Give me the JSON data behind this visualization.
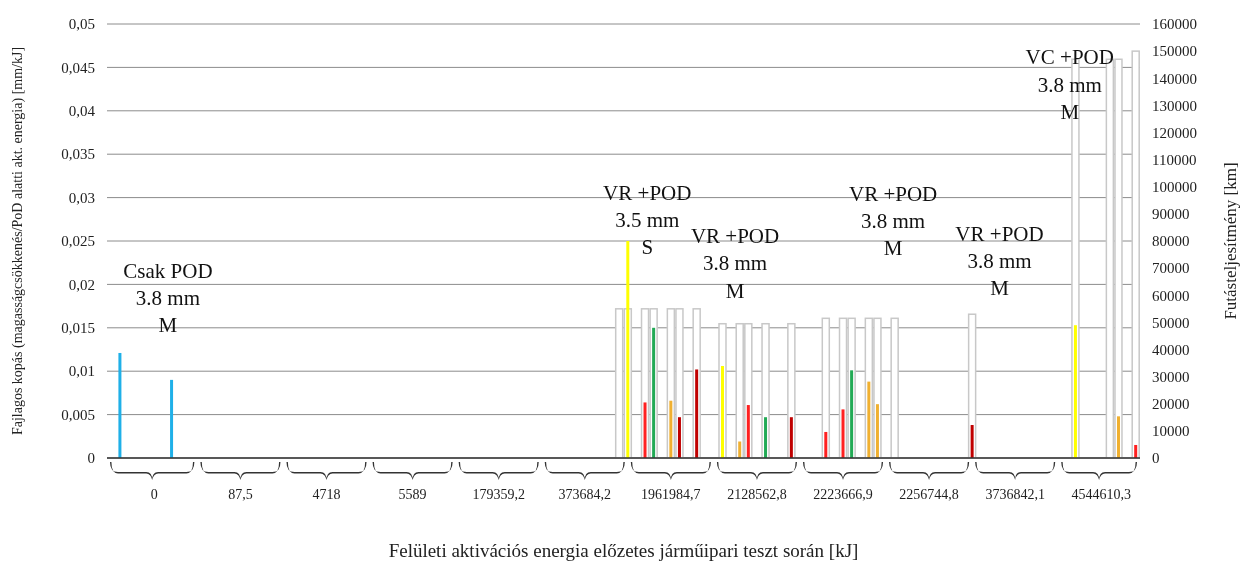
{
  "chart_data": {
    "type": "bar",
    "xlabel": "Felületi aktivációs energia előzetes járműipari teszt során [kJ]",
    "ylabel": "Fajlagos kopás (magasságcsökkenés/PoD alatti akt. energia) [mm/kJ]",
    "y2label": "Futásteljesítmény [km]",
    "categories": [
      null,
      null,
      null,
      null,
      null,
      "0",
      null,
      null,
      null,
      null,
      null,
      null,
      null,
      null,
      null,
      "87,5",
      null,
      null,
      null,
      null,
      null,
      null,
      null,
      null,
      null,
      "4718",
      null,
      null,
      null,
      null,
      null,
      null,
      null,
      null,
      null,
      "5589",
      null,
      null,
      null,
      null,
      null,
      null,
      null,
      null,
      null,
      "179359,2",
      null,
      null,
      null,
      null,
      null,
      null,
      null,
      null,
      null,
      "373684,2",
      null,
      null,
      null,
      null,
      null,
      null,
      null,
      null,
      null,
      "1961984,7",
      null,
      null,
      null,
      null,
      null,
      null,
      null,
      null,
      null,
      "2128562,8",
      null,
      null,
      null,
      null,
      null,
      null,
      null,
      null,
      null,
      "2223666,9",
      null,
      null,
      null,
      null,
      null,
      null,
      null,
      null,
      null,
      "2256744,8",
      null,
      null,
      null,
      null,
      null,
      null,
      null,
      null,
      null,
      "3736842,1",
      null,
      null,
      null,
      null,
      null,
      null,
      null,
      null,
      null,
      "4544610,3",
      null,
      null,
      null,
      null
    ],
    "ylim": [
      0,
      0.05
    ],
    "yticks": [
      0,
      {
        "value": 0.005,
        "label": "0,005"
      },
      {
        "value": 0.01,
        "label": "0,01"
      },
      {
        "value": 0.015,
        "label": "0,015"
      },
      {
        "value": 0.02,
        "label": "0,02"
      },
      {
        "value": 0.025,
        "label": "0,025"
      },
      {
        "value": 0.03,
        "label": "0,03"
      },
      {
        "value": 0.035,
        "label": "0,035"
      },
      {
        "value": 0.04,
        "label": "0,04"
      },
      {
        "value": 0.045,
        "label": "0,045"
      },
      {
        "value": 0.05,
        "label": "0,05"
      }
    ],
    "y2lim": [
      0,
      160000
    ],
    "y2ticks": [
      0,
      10000,
      20000,
      30000,
      40000,
      50000,
      60000,
      70000,
      80000,
      90000,
      100000,
      110000,
      120000,
      130000,
      140000,
      150000,
      160000
    ],
    "grid": "y",
    "series": [
      {
        "axis": "y2",
        "color": "#c8c8c8",
        "values": [
          null,
          null,
          null,
          null,
          null,
          null,
          null,
          null,
          null,
          null,
          null,
          null,
          null,
          null,
          null,
          null,
          null,
          null,
          null,
          null,
          null,
          null,
          null,
          null,
          null,
          null,
          null,
          null,
          null,
          null,
          null,
          null,
          null,
          null,
          null,
          null,
          null,
          null,
          null,
          null,
          null,
          null,
          null,
          null,
          null,
          null,
          null,
          null,
          null,
          null,
          null,
          null,
          null,
          null,
          null,
          null,
          null,
          null,
          null,
          55000,
          55000,
          null,
          55000,
          55000,
          null,
          55000,
          55000,
          null,
          55000,
          null,
          null,
          49500,
          null,
          49500,
          49500,
          null,
          49500,
          null,
          null,
          49500,
          null,
          null,
          null,
          51500,
          null,
          51500,
          51500,
          null,
          51500,
          51500,
          null,
          51500,
          null,
          null,
          null,
          null,
          null,
          null,
          null,
          null,
          53000,
          null,
          null,
          null,
          null,
          null,
          null,
          null,
          null,
          null,
          null,
          null,
          147000,
          null,
          null,
          null,
          147000,
          147000,
          null,
          150000
        ]
      },
      {
        "color": "#1fb0e8",
        "values": [
          null,
          0.0121,
          null,
          null,
          null,
          null,
          null,
          0.009,
          null,
          null,
          null,
          null,
          null,
          null,
          null,
          null,
          null,
          null,
          null,
          null,
          null,
          null,
          null,
          null,
          null,
          null,
          null,
          null,
          null,
          null,
          null,
          null,
          null,
          null,
          null,
          null,
          null,
          null,
          null,
          null,
          null,
          null,
          null,
          null,
          null,
          null,
          null,
          null,
          null,
          null,
          null,
          null,
          null,
          null,
          null,
          null,
          null,
          null,
          null,
          null,
          null,
          null,
          null,
          null,
          null,
          null,
          null,
          null,
          null,
          null,
          null,
          null,
          null,
          null,
          null,
          null,
          null,
          null,
          null,
          null,
          null,
          null,
          null,
          null,
          null,
          null,
          null,
          null,
          null,
          null,
          null,
          null,
          null,
          null,
          null,
          null,
          null,
          null,
          null,
          null,
          null,
          null,
          null,
          null,
          null,
          null,
          null,
          null,
          null,
          null,
          null,
          null,
          null,
          null,
          null,
          null,
          null,
          null,
          null,
          null
        ]
      },
      {
        "color": "#ffff00",
        "values": [
          null,
          null,
          null,
          null,
          null,
          null,
          null,
          null,
          null,
          null,
          null,
          null,
          null,
          null,
          null,
          null,
          null,
          null,
          null,
          null,
          null,
          null,
          null,
          null,
          null,
          null,
          null,
          null,
          null,
          null,
          null,
          null,
          null,
          null,
          null,
          null,
          null,
          null,
          null,
          null,
          null,
          null,
          null,
          null,
          null,
          null,
          null,
          null,
          null,
          null,
          null,
          null,
          null,
          null,
          null,
          null,
          null,
          null,
          null,
          null,
          0.025,
          null,
          null,
          null,
          null,
          null,
          null,
          null,
          null,
          null,
          null,
          0.0106,
          null,
          null,
          null,
          null,
          null,
          null,
          null,
          null,
          null,
          null,
          null,
          null,
          null,
          null,
          null,
          null,
          null,
          null,
          null,
          null,
          null,
          null,
          null,
          null,
          null,
          null,
          null,
          null,
          null,
          null,
          null,
          null,
          null,
          null,
          null,
          null,
          null,
          null,
          null,
          null,
          0.0153,
          null,
          null,
          null,
          null,
          null,
          null,
          null
        ]
      },
      {
        "color": "#ff2020",
        "values": [
          null,
          null,
          null,
          null,
          null,
          null,
          null,
          null,
          null,
          null,
          null,
          null,
          null,
          null,
          null,
          null,
          null,
          null,
          null,
          null,
          null,
          null,
          null,
          null,
          null,
          null,
          null,
          null,
          null,
          null,
          null,
          null,
          null,
          null,
          null,
          null,
          null,
          null,
          null,
          null,
          null,
          null,
          null,
          null,
          null,
          null,
          null,
          null,
          null,
          null,
          null,
          null,
          null,
          null,
          null,
          null,
          null,
          null,
          null,
          null,
          null,
          null,
          0.0064,
          null,
          null,
          null,
          null,
          null,
          null,
          null,
          null,
          null,
          null,
          null,
          0.0061,
          null,
          null,
          null,
          null,
          null,
          null,
          null,
          null,
          0.003,
          null,
          0.0056,
          null,
          null,
          null,
          null,
          null,
          null,
          null,
          null,
          null,
          null,
          null,
          null,
          null,
          null,
          null,
          null,
          null,
          null,
          null,
          null,
          null,
          null,
          null,
          null,
          null,
          null,
          null,
          null,
          null,
          null,
          null,
          null,
          null,
          0.0015
        ]
      },
      {
        "color": "#22aa55",
        "values": [
          null,
          null,
          null,
          null,
          null,
          null,
          null,
          null,
          null,
          null,
          null,
          null,
          null,
          null,
          null,
          null,
          null,
          null,
          null,
          null,
          null,
          null,
          null,
          null,
          null,
          null,
          null,
          null,
          null,
          null,
          null,
          null,
          null,
          null,
          null,
          null,
          null,
          null,
          null,
          null,
          null,
          null,
          null,
          null,
          null,
          null,
          null,
          null,
          null,
          null,
          null,
          null,
          null,
          null,
          null,
          null,
          null,
          null,
          null,
          null,
          null,
          null,
          null,
          0.015,
          null,
          null,
          null,
          null,
          null,
          null,
          null,
          null,
          null,
          null,
          null,
          null,
          0.0047,
          null,
          null,
          null,
          null,
          null,
          null,
          null,
          null,
          null,
          0.0101,
          null,
          null,
          null,
          null,
          null,
          null,
          null,
          null,
          null,
          null,
          null,
          null,
          null,
          null,
          null,
          null,
          null,
          null,
          null,
          null,
          null,
          null,
          null,
          null,
          null,
          null,
          null,
          null,
          null,
          null,
          null,
          null,
          null
        ]
      },
      {
        "color": "#f0b030",
        "values": [
          null,
          null,
          null,
          null,
          null,
          null,
          null,
          null,
          null,
          null,
          null,
          null,
          null,
          null,
          null,
          null,
          null,
          null,
          null,
          null,
          null,
          null,
          null,
          null,
          null,
          null,
          null,
          null,
          null,
          null,
          null,
          null,
          null,
          null,
          null,
          null,
          null,
          null,
          null,
          null,
          null,
          null,
          null,
          null,
          null,
          null,
          null,
          null,
          null,
          null,
          null,
          null,
          null,
          null,
          null,
          null,
          null,
          null,
          null,
          null,
          null,
          null,
          null,
          null,
          null,
          0.0066,
          null,
          null,
          null,
          null,
          null,
          null,
          null,
          0.0019,
          null,
          null,
          null,
          null,
          null,
          null,
          null,
          null,
          null,
          null,
          null,
          null,
          null,
          null,
          0.0088,
          0.0062,
          null,
          null,
          null,
          null,
          null,
          null,
          null,
          null,
          null,
          null,
          null,
          null,
          null,
          null,
          null,
          null,
          null,
          null,
          null,
          null,
          null,
          null,
          null,
          null,
          null,
          null,
          null,
          0.0048,
          null,
          null
        ]
      },
      {
        "color": "#c00000",
        "values": [
          null,
          null,
          null,
          null,
          null,
          null,
          null,
          null,
          null,
          null,
          null,
          null,
          null,
          null,
          null,
          null,
          null,
          null,
          null,
          null,
          null,
          null,
          null,
          null,
          null,
          null,
          null,
          null,
          null,
          null,
          null,
          null,
          null,
          null,
          null,
          null,
          null,
          null,
          null,
          null,
          null,
          null,
          null,
          null,
          null,
          null,
          null,
          null,
          null,
          null,
          null,
          null,
          null,
          null,
          null,
          null,
          null,
          null,
          null,
          null,
          null,
          null,
          null,
          null,
          null,
          null,
          0.0047,
          null,
          0.0102,
          null,
          null,
          null,
          null,
          null,
          null,
          null,
          null,
          null,
          null,
          0.0047,
          null,
          null,
          null,
          null,
          null,
          null,
          null,
          null,
          null,
          null,
          null,
          null,
          null,
          null,
          null,
          null,
          null,
          null,
          null,
          null,
          0.0038,
          null,
          null,
          null,
          null,
          null,
          null,
          null,
          null,
          null,
          null,
          null,
          null,
          null,
          null,
          null,
          null,
          null,
          null,
          null
        ]
      }
    ],
    "annotations": [
      "Csak POD\n3.8 mm\nM",
      "VR +POD\n3.5 mm\nS",
      "VR +POD\n3.8 mm\nM",
      "VR +POD\n3.8 mm\nM",
      "VR +POD\n3.8 mm\nM",
      "VC +POD\n3.8 mm\nM"
    ]
  }
}
